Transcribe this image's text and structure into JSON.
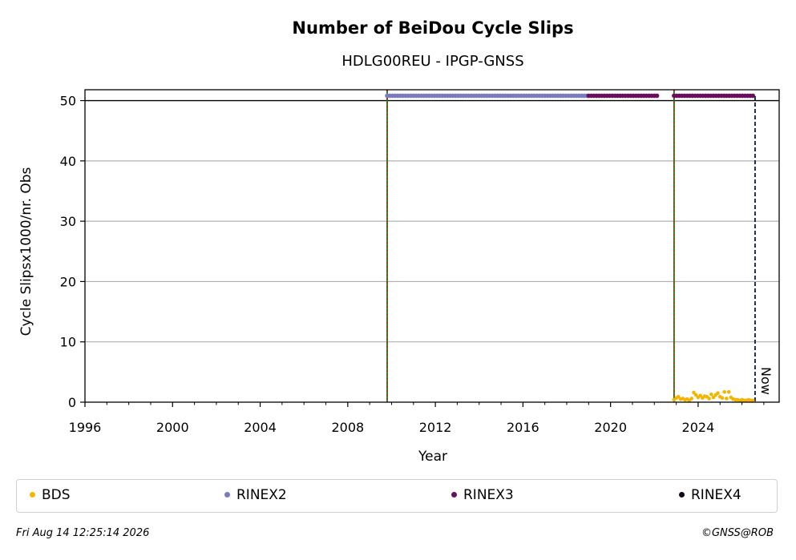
{
  "chart_data": {
    "type": "scatter",
    "title": "Number of BeiDou Cycle Slips",
    "subtitle": "HDLG00REU - IPGP-GNSS",
    "xlabel": "Year",
    "ylabel": "Cycle Slipsx1000/nr. Obs",
    "xlim": [
      1996,
      2027.7
    ],
    "ylim": [
      0,
      51.8
    ],
    "x_ticks": [
      "1996",
      "2000",
      "2004",
      "2008",
      "2012",
      "2016",
      "2020",
      "2024"
    ],
    "y_ticks": [
      "0",
      "10",
      "20",
      "30",
      "40",
      "50"
    ],
    "grid": "horizontal",
    "reference_line_y": 50,
    "vertical_markers": [
      2009.8,
      2022.9
    ],
    "now_year": 2026.6,
    "now_label": "Now",
    "series": [
      {
        "name": "BDS",
        "color": "#f5b400",
        "points": [
          [
            2022.9,
            0.4
          ],
          [
            2023.0,
            0.7
          ],
          [
            2023.1,
            0.9
          ],
          [
            2023.2,
            0.5
          ],
          [
            2023.3,
            0.6
          ],
          [
            2023.4,
            0.4
          ],
          [
            2023.5,
            0.5
          ],
          [
            2023.6,
            0.3
          ],
          [
            2023.7,
            0.6
          ],
          [
            2023.8,
            1.6
          ],
          [
            2023.9,
            1.2
          ],
          [
            2024.0,
            0.8
          ],
          [
            2024.1,
            1.1
          ],
          [
            2024.2,
            0.7
          ],
          [
            2024.3,
            1.0
          ],
          [
            2024.4,
            0.9
          ],
          [
            2024.5,
            0.6
          ],
          [
            2024.6,
            1.3
          ],
          [
            2024.7,
            0.8
          ],
          [
            2024.8,
            1.2
          ],
          [
            2024.9,
            1.5
          ],
          [
            2025.0,
            0.9
          ],
          [
            2025.1,
            0.7
          ],
          [
            2025.2,
            1.7
          ],
          [
            2025.3,
            0.6
          ],
          [
            2025.4,
            1.7
          ],
          [
            2025.5,
            0.8
          ],
          [
            2025.6,
            0.5
          ],
          [
            2025.7,
            0.4
          ],
          [
            2025.8,
            0.4
          ],
          [
            2025.9,
            0.3
          ],
          [
            2026.0,
            0.4
          ],
          [
            2026.1,
            0.3
          ],
          [
            2026.2,
            0.3
          ],
          [
            2026.3,
            0.4
          ],
          [
            2026.4,
            0.3
          ],
          [
            2026.5,
            0.3
          ]
        ]
      },
      {
        "name": "RINEX2",
        "color": "#7b7bbf",
        "ranges": [
          [
            2009.8,
            2019.0
          ]
        ],
        "y": 50.8
      },
      {
        "name": "RINEX3",
        "color": "#6a0f5c",
        "ranges": [
          [
            2019.0,
            2022.2
          ],
          [
            2022.9,
            2026.6
          ]
        ],
        "y": 50.8
      },
      {
        "name": "RINEX4",
        "color": "#14061a",
        "ranges": [],
        "y": 50.8
      }
    ],
    "legend_placement": "bottom"
  },
  "footer": {
    "timestamp": "Fri Aug 14 12:25:14 2026",
    "credit": "©GNSS@ROB"
  }
}
